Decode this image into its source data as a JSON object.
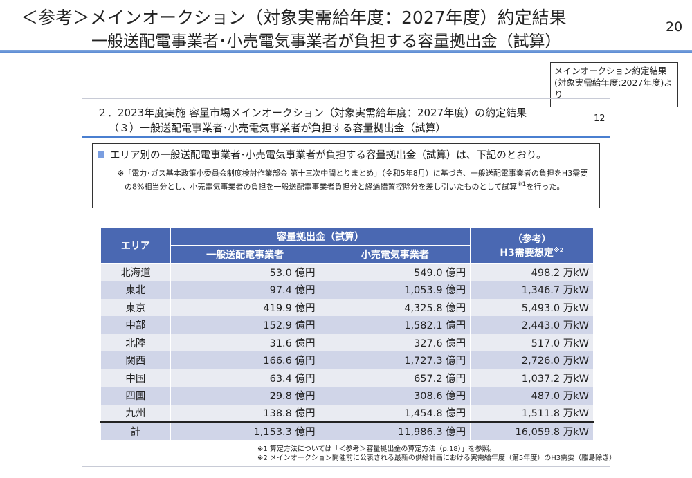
{
  "page": {
    "title_line1": "＜参考＞メインオークション（対象実需給年度：2027年度）約定結果",
    "title_line2": "一般送配電事業者･小売電気事業者が負担する容量拠出金（試算）",
    "page_number": "20",
    "source_note": "メインオークション約定結果(対象実需給年度:2027年度)より"
  },
  "slide": {
    "title_line1": "２．2023年度実施 容量市場メインオークション（対象実需給年度：2027年度）の約定結果",
    "title_line2": "（３）一般送配電事業者･小売電気事業者が負担する容量拠出金（試算）",
    "page_number": "12",
    "bullet": "エリア別の一般送配電事業者･小売電気事業者が負担する容量拠出金（試算）は、下記のとおり。",
    "bullet_note": "※「電力･ガス基本政策小委員会制度検討作業部会 第十三次中間とりまとめ」（令和5年8月）に基づき、一般送配電事業者の負担をH3需要の8%相当分とし、小売電気事業者の負担を一般送配電事業者負担分と経過措置控除分を差し引いたものとして試算",
    "bullet_note_sup": "※1",
    "bullet_note_end": "を行った。"
  },
  "table": {
    "h_area": "エリア",
    "h_group": "容量拠出金（試算）",
    "h_col1": "一般送配電事業者",
    "h_col2": "小売電気事業者",
    "h_ref1": "（参考）",
    "h_ref2": "H3需要想定",
    "h_ref_sup": "※2",
    "rows": [
      {
        "area": "北海道",
        "c1": "53.0 億円",
        "c2": "549.0 億円",
        "c3": "498.2 万kW"
      },
      {
        "area": "東北",
        "c1": "97.4 億円",
        "c2": "1,053.9 億円",
        "c3": "1,346.7 万kW"
      },
      {
        "area": "東京",
        "c1": "419.9 億円",
        "c2": "4,325.8 億円",
        "c3": "5,493.0 万kW"
      },
      {
        "area": "中部",
        "c1": "152.9 億円",
        "c2": "1,582.1 億円",
        "c3": "2,443.0 万kW"
      },
      {
        "area": "北陸",
        "c1": "31.6 億円",
        "c2": "327.6 億円",
        "c3": "517.0 万kW"
      },
      {
        "area": "関西",
        "c1": "166.6 億円",
        "c2": "1,727.3 億円",
        "c3": "2,726.0 万kW"
      },
      {
        "area": "中国",
        "c1": "63.4 億円",
        "c2": "657.2 億円",
        "c3": "1,037.2 万kW"
      },
      {
        "area": "四国",
        "c1": "29.8 億円",
        "c2": "308.6 億円",
        "c3": "487.0 万kW"
      },
      {
        "area": "九州",
        "c1": "138.8 億円",
        "c2": "1,454.8 億円",
        "c3": "1,511.8 万kW"
      }
    ],
    "total": {
      "area": "計",
      "c1": "1,153.3 億円",
      "c2": "11,986.3 億円",
      "c3": "16,059.8 万kW"
    }
  },
  "footnotes": [
    "※1 算定方法については「＜参考＞容量拠出金の算定方法（p.18）」を参照。",
    "※2 メインオークション開催前に公表される最新の供給計画における実需給年度（第5年度）のH3需要（離島除き）"
  ],
  "colors": {
    "header": "#4a68b2",
    "row_light": "#e9ebf2",
    "row_dark": "#d0d5e8",
    "accent_line": "#4a7fd0"
  }
}
